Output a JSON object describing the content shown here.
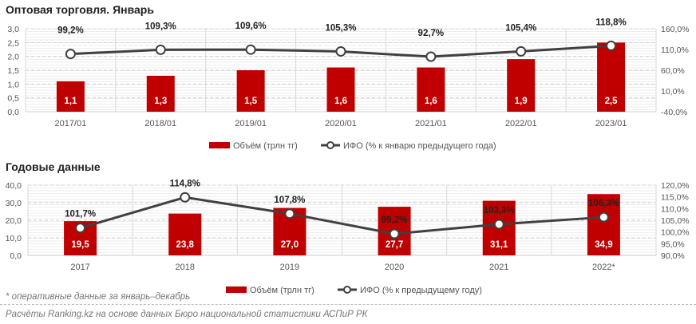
{
  "chart_data": [
    {
      "type": "bar+line",
      "title": "Оптовая торговля. Январь",
      "categories": [
        "2017/01",
        "2018/01",
        "2019/01",
        "2020/01",
        "2021/01",
        "2022/01",
        "2023/01"
      ],
      "series": [
        {
          "name": "Объём (трлн тг)",
          "type": "bar",
          "values": [
            1.1,
            1.3,
            1.5,
            1.6,
            1.6,
            1.9,
            2.5
          ],
          "labels": [
            "1,1",
            "1,3",
            "1,5",
            "1,6",
            "1,6",
            "1,9",
            "2,5"
          ]
        },
        {
          "name": "ИФО (% к январю предыдущего года)",
          "type": "line",
          "values": [
            99.2,
            109.3,
            109.6,
            105.3,
            92.7,
            105.4,
            118.8
          ],
          "labels": [
            "99,2%",
            "109,3%",
            "109,6%",
            "105,3%",
            "92,7%",
            "105,4%",
            "118,8%"
          ]
        }
      ],
      "ylim": [
        0,
        3
      ],
      "yticks": [
        "0,0",
        "0,5",
        "1,0",
        "1,5",
        "2,0",
        "2,5",
        "3,0"
      ],
      "y2lim": [
        -40,
        160
      ],
      "y2ticks": [
        "-40,0%",
        "10,0%",
        "60,0%",
        "110,0%",
        "160,0%"
      ],
      "legend": "bottom",
      "bar_color": "#c00000",
      "line_color": "#404040"
    },
    {
      "type": "bar+line",
      "title": "Годовые данные",
      "categories": [
        "2017",
        "2018",
        "2019",
        "2020",
        "2021",
        "2022*"
      ],
      "series": [
        {
          "name": "Объём (трлн тг)",
          "type": "bar",
          "values": [
            19.5,
            23.8,
            27.0,
            27.7,
            31.1,
            34.9
          ],
          "labels": [
            "19,5",
            "23,8",
            "27,0",
            "27,7",
            "31,1",
            "34,9"
          ]
        },
        {
          "name": "ИФО (% к предыдущему году)",
          "type": "line",
          "values": [
            101.7,
            114.8,
            107.8,
            99.2,
            103.3,
            106.3
          ],
          "labels": [
            "101,7%",
            "114,8%",
            "107,8%",
            "99,2%",
            "103,3%",
            "106,3%"
          ]
        }
      ],
      "ylim": [
        0,
        40
      ],
      "yticks": [
        "0,0",
        "10,0",
        "20,0",
        "30,0",
        "40,0"
      ],
      "y2lim": [
        90,
        120
      ],
      "y2ticks": [
        "90,0%",
        "95,0%",
        "100,0%",
        "105,0%",
        "110,0%",
        "115,0%",
        "120,0%"
      ],
      "legend": "bottom",
      "bar_color": "#c00000",
      "line_color": "#404040"
    }
  ],
  "footnote": "* оперативные данные за январь–декабрь",
  "source": "Расчёты Ranking.kz на основе данных Бюро национальной статистики АСПиР РК"
}
